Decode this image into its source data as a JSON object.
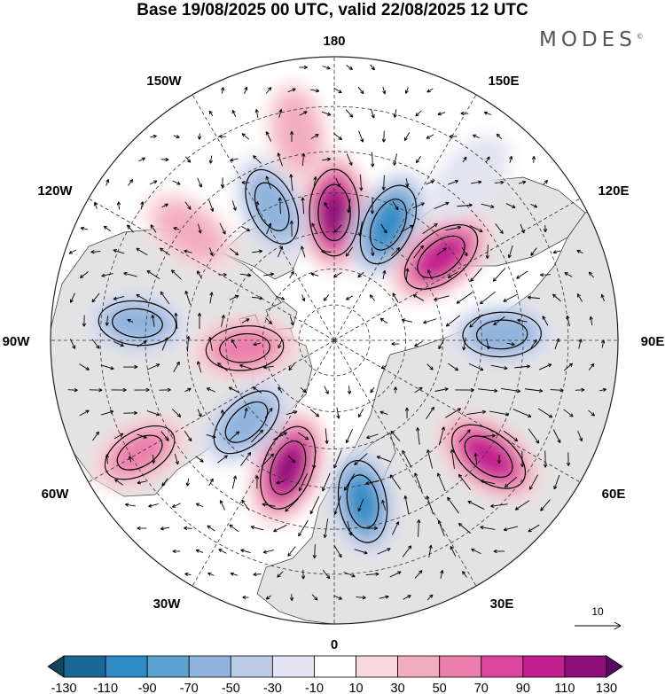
{
  "title": "Base 19/08/2025 00 UTC, valid 22/08/2025 12 UTC",
  "brand": "MODES",
  "brand_mark": "©",
  "projection": "north-polar-stereographic",
  "longitude_labels": {
    "lon_0": "0",
    "lon_30E": "30E",
    "lon_60E": "60E",
    "lon_90E": "90E",
    "lon_120E": "120E",
    "lon_150E": "150E",
    "lon_180": "180",
    "lon_150W": "150W",
    "lon_120W": "120W",
    "lon_90W": "90W",
    "lon_60W": "60W",
    "lon_30W": "30W"
  },
  "vector_reference": {
    "label": "10",
    "value": 10
  },
  "colorbar": {
    "ticks": [
      "-130",
      "-110",
      "-90",
      "-70",
      "-50",
      "-30",
      "-10",
      "10",
      "30",
      "50",
      "70",
      "90",
      "110",
      "130"
    ],
    "colors": [
      "#13445f",
      "#1b6796",
      "#2f8bc5",
      "#5aa2cf",
      "#8fb3dc",
      "#bccbe6",
      "#e4e4f2",
      "#ffffff",
      "#f9d9dc",
      "#f3aebe",
      "#ea7fac",
      "#dc46a0",
      "#c01f8e",
      "#8e0e7a",
      "#5a0a5e"
    ],
    "palette": {
      "land": "#e3e3e3",
      "ocean": "#ffffff",
      "coast": "#333333",
      "grid": "#333333",
      "vector": "#000000"
    }
  },
  "anomaly_centers": [
    {
      "lon": 180,
      "lat": 55,
      "value": 115
    },
    {
      "lon": 155,
      "lat": 55,
      "value": -95
    },
    {
      "lon": 128,
      "lat": 53,
      "value": 100
    },
    {
      "lon": 92,
      "lat": 45,
      "value": -60
    },
    {
      "lon": 53,
      "lat": 39,
      "value": 100
    },
    {
      "lon": 10,
      "lat": 46,
      "value": -90
    },
    {
      "lon": -20,
      "lat": 53,
      "value": 110
    },
    {
      "lon": -47,
      "lat": 57,
      "value": -60
    },
    {
      "lon": -60,
      "lat": 32,
      "value": 45
    },
    {
      "lon": -85,
      "lat": 65,
      "value": 55
    },
    {
      "lon": -95,
      "lat": 38,
      "value": -55
    },
    {
      "lon": -127,
      "lat": 42,
      "value": 35
    },
    {
      "lon": -155,
      "lat": 50,
      "value": -65
    },
    {
      "lon": -170,
      "lat": 35,
      "value": 25
    },
    {
      "lon": 140,
      "lat": 35,
      "value": -20
    }
  ]
}
